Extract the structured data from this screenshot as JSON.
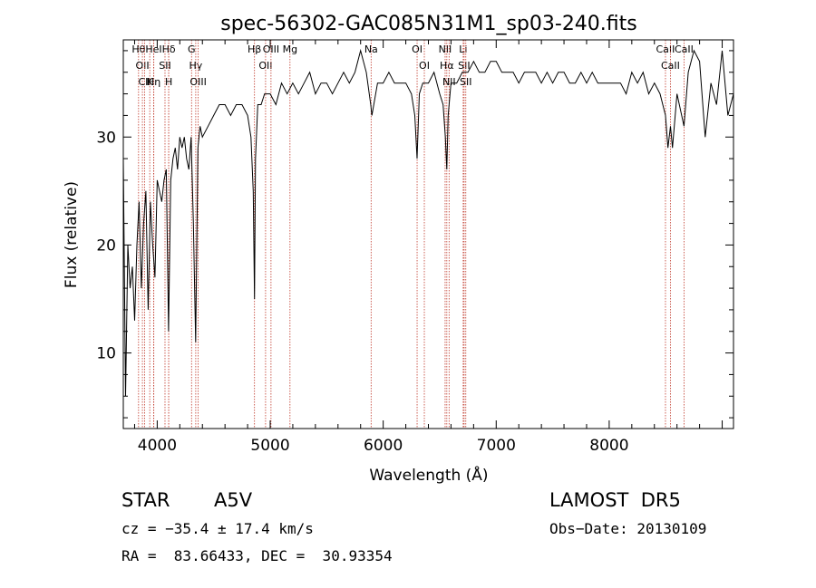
{
  "chart_data": {
    "type": "line",
    "title": "spec-56302-GAC085N31M1_sp03-240.fits",
    "xlabel": "Wavelength (Å)",
    "ylabel": "Flux (relative)",
    "xlim": [
      3700,
      9100
    ],
    "ylim": [
      3,
      39
    ],
    "x_ticks": [
      4000,
      5000,
      6000,
      7000,
      8000
    ],
    "y_ticks": [
      10,
      20,
      30
    ],
    "series": [
      {
        "x": [
          3700,
          3720,
          3740,
          3760,
          3780,
          3800,
          3820,
          3840,
          3860,
          3880,
          3900,
          3920,
          3940,
          3960,
          3980,
          4000,
          4020,
          4040,
          4060,
          4080,
          4100,
          4120,
          4140,
          4160,
          4180,
          4200,
          4220,
          4240,
          4260,
          4280,
          4300,
          4320,
          4340,
          4360,
          4380,
          4400,
          4450,
          4500,
          4550,
          4600,
          4650,
          4700,
          4750,
          4800,
          4830,
          4850,
          4861,
          4870,
          4890,
          4920,
          4950,
          5000,
          5050,
          5100,
          5150,
          5200,
          5250,
          5300,
          5350,
          5400,
          5450,
          5500,
          5550,
          5600,
          5650,
          5700,
          5750,
          5800,
          5850,
          5890,
          5900,
          5950,
          6000,
          6050,
          6100,
          6150,
          6200,
          6250,
          6280,
          6300,
          6320,
          6350,
          6400,
          6450,
          6500,
          6530,
          6550,
          6563,
          6575,
          6600,
          6650,
          6700,
          6750,
          6800,
          6850,
          6900,
          6950,
          7000,
          7050,
          7100,
          7150,
          7200,
          7250,
          7300,
          7350,
          7400,
          7450,
          7500,
          7550,
          7600,
          7650,
          7700,
          7750,
          7800,
          7850,
          7900,
          7950,
          8000,
          8050,
          8100,
          8150,
          8200,
          8250,
          8300,
          8350,
          8400,
          8450,
          8498,
          8520,
          8542,
          8560,
          8600,
          8662,
          8700,
          8750,
          8800,
          8850,
          8900,
          8950,
          9000,
          9050,
          9100
        ],
        "y": [
          28,
          6,
          20,
          16,
          18,
          13,
          20,
          24,
          16,
          22,
          25,
          14,
          24,
          20,
          17,
          26,
          25,
          24,
          26,
          27,
          12,
          26,
          28,
          29,
          27,
          30,
          29,
          30,
          28,
          27,
          30,
          22,
          11,
          29,
          31,
          30,
          31,
          32,
          33,
          33,
          32,
          33,
          33,
          32,
          30,
          25,
          15,
          28,
          33,
          33,
          34,
          34,
          33,
          35,
          34,
          35,
          34,
          35,
          36,
          34,
          35,
          35,
          34,
          35,
          36,
          35,
          36,
          38,
          36,
          33,
          32,
          35,
          35,
          36,
          35,
          35,
          35,
          34,
          32,
          28,
          34,
          35,
          35,
          36,
          34,
          33,
          30,
          27,
          32,
          35,
          35,
          36,
          36,
          37,
          36,
          36,
          37,
          37,
          36,
          36,
          36,
          35,
          36,
          36,
          36,
          35,
          36,
          35,
          36,
          36,
          35,
          35,
          36,
          35,
          36,
          35,
          35,
          35,
          35,
          35,
          34,
          36,
          35,
          36,
          34,
          35,
          34,
          32,
          29,
          31,
          29,
          34,
          31,
          36,
          38,
          37,
          30,
          35,
          33,
          38,
          32,
          34
        ]
      }
    ],
    "lines": [
      {
        "w": 3835,
        "label": "Hθ"
      },
      {
        "w": 3869,
        "label": "OII"
      },
      {
        "w": 3889,
        "label": "CII"
      },
      {
        "w": 3934,
        "label": "K"
      },
      {
        "w": 3969,
        "label": "HeI"
      },
      {
        "w": 3970,
        "label": "Hη"
      },
      {
        "w": 4069,
        "label": "SII"
      },
      {
        "w": 4102,
        "label": "Hδ"
      },
      {
        "w": 4102,
        "label": "H"
      },
      {
        "w": 4304,
        "label": "G"
      },
      {
        "w": 4341,
        "label": "Hγ"
      },
      {
        "w": 4363,
        "label": "OIII"
      },
      {
        "w": 4861,
        "label": "Hβ"
      },
      {
        "w": 4959,
        "label": "OII"
      },
      {
        "w": 5007,
        "label": "OIII"
      },
      {
        "w": 5175,
        "label": "Mg"
      },
      {
        "w": 5893,
        "label": "Na"
      },
      {
        "w": 6300,
        "label": "OI"
      },
      {
        "w": 6364,
        "label": "OI"
      },
      {
        "w": 6548,
        "label": "NII"
      },
      {
        "w": 6563,
        "label": "Hα"
      },
      {
        "w": 6583,
        "label": "NII"
      },
      {
        "w": 6708,
        "label": "Li"
      },
      {
        "w": 6716,
        "label": "SII"
      },
      {
        "w": 6731,
        "label": "SII"
      },
      {
        "w": 8498,
        "label": "CaII"
      },
      {
        "w": 8542,
        "label": "CaII"
      },
      {
        "w": 8662,
        "label": "CaII"
      }
    ]
  },
  "info": {
    "class_label": "STAR",
    "subclass": "A5V",
    "survey": "LAMOST  DR5",
    "cz": "cz = −35.4 ± 17.4 km/s",
    "obs_date": "Obs−Date: 20130109",
    "coords": "RA =  83.66433, DEC =  30.93354"
  }
}
